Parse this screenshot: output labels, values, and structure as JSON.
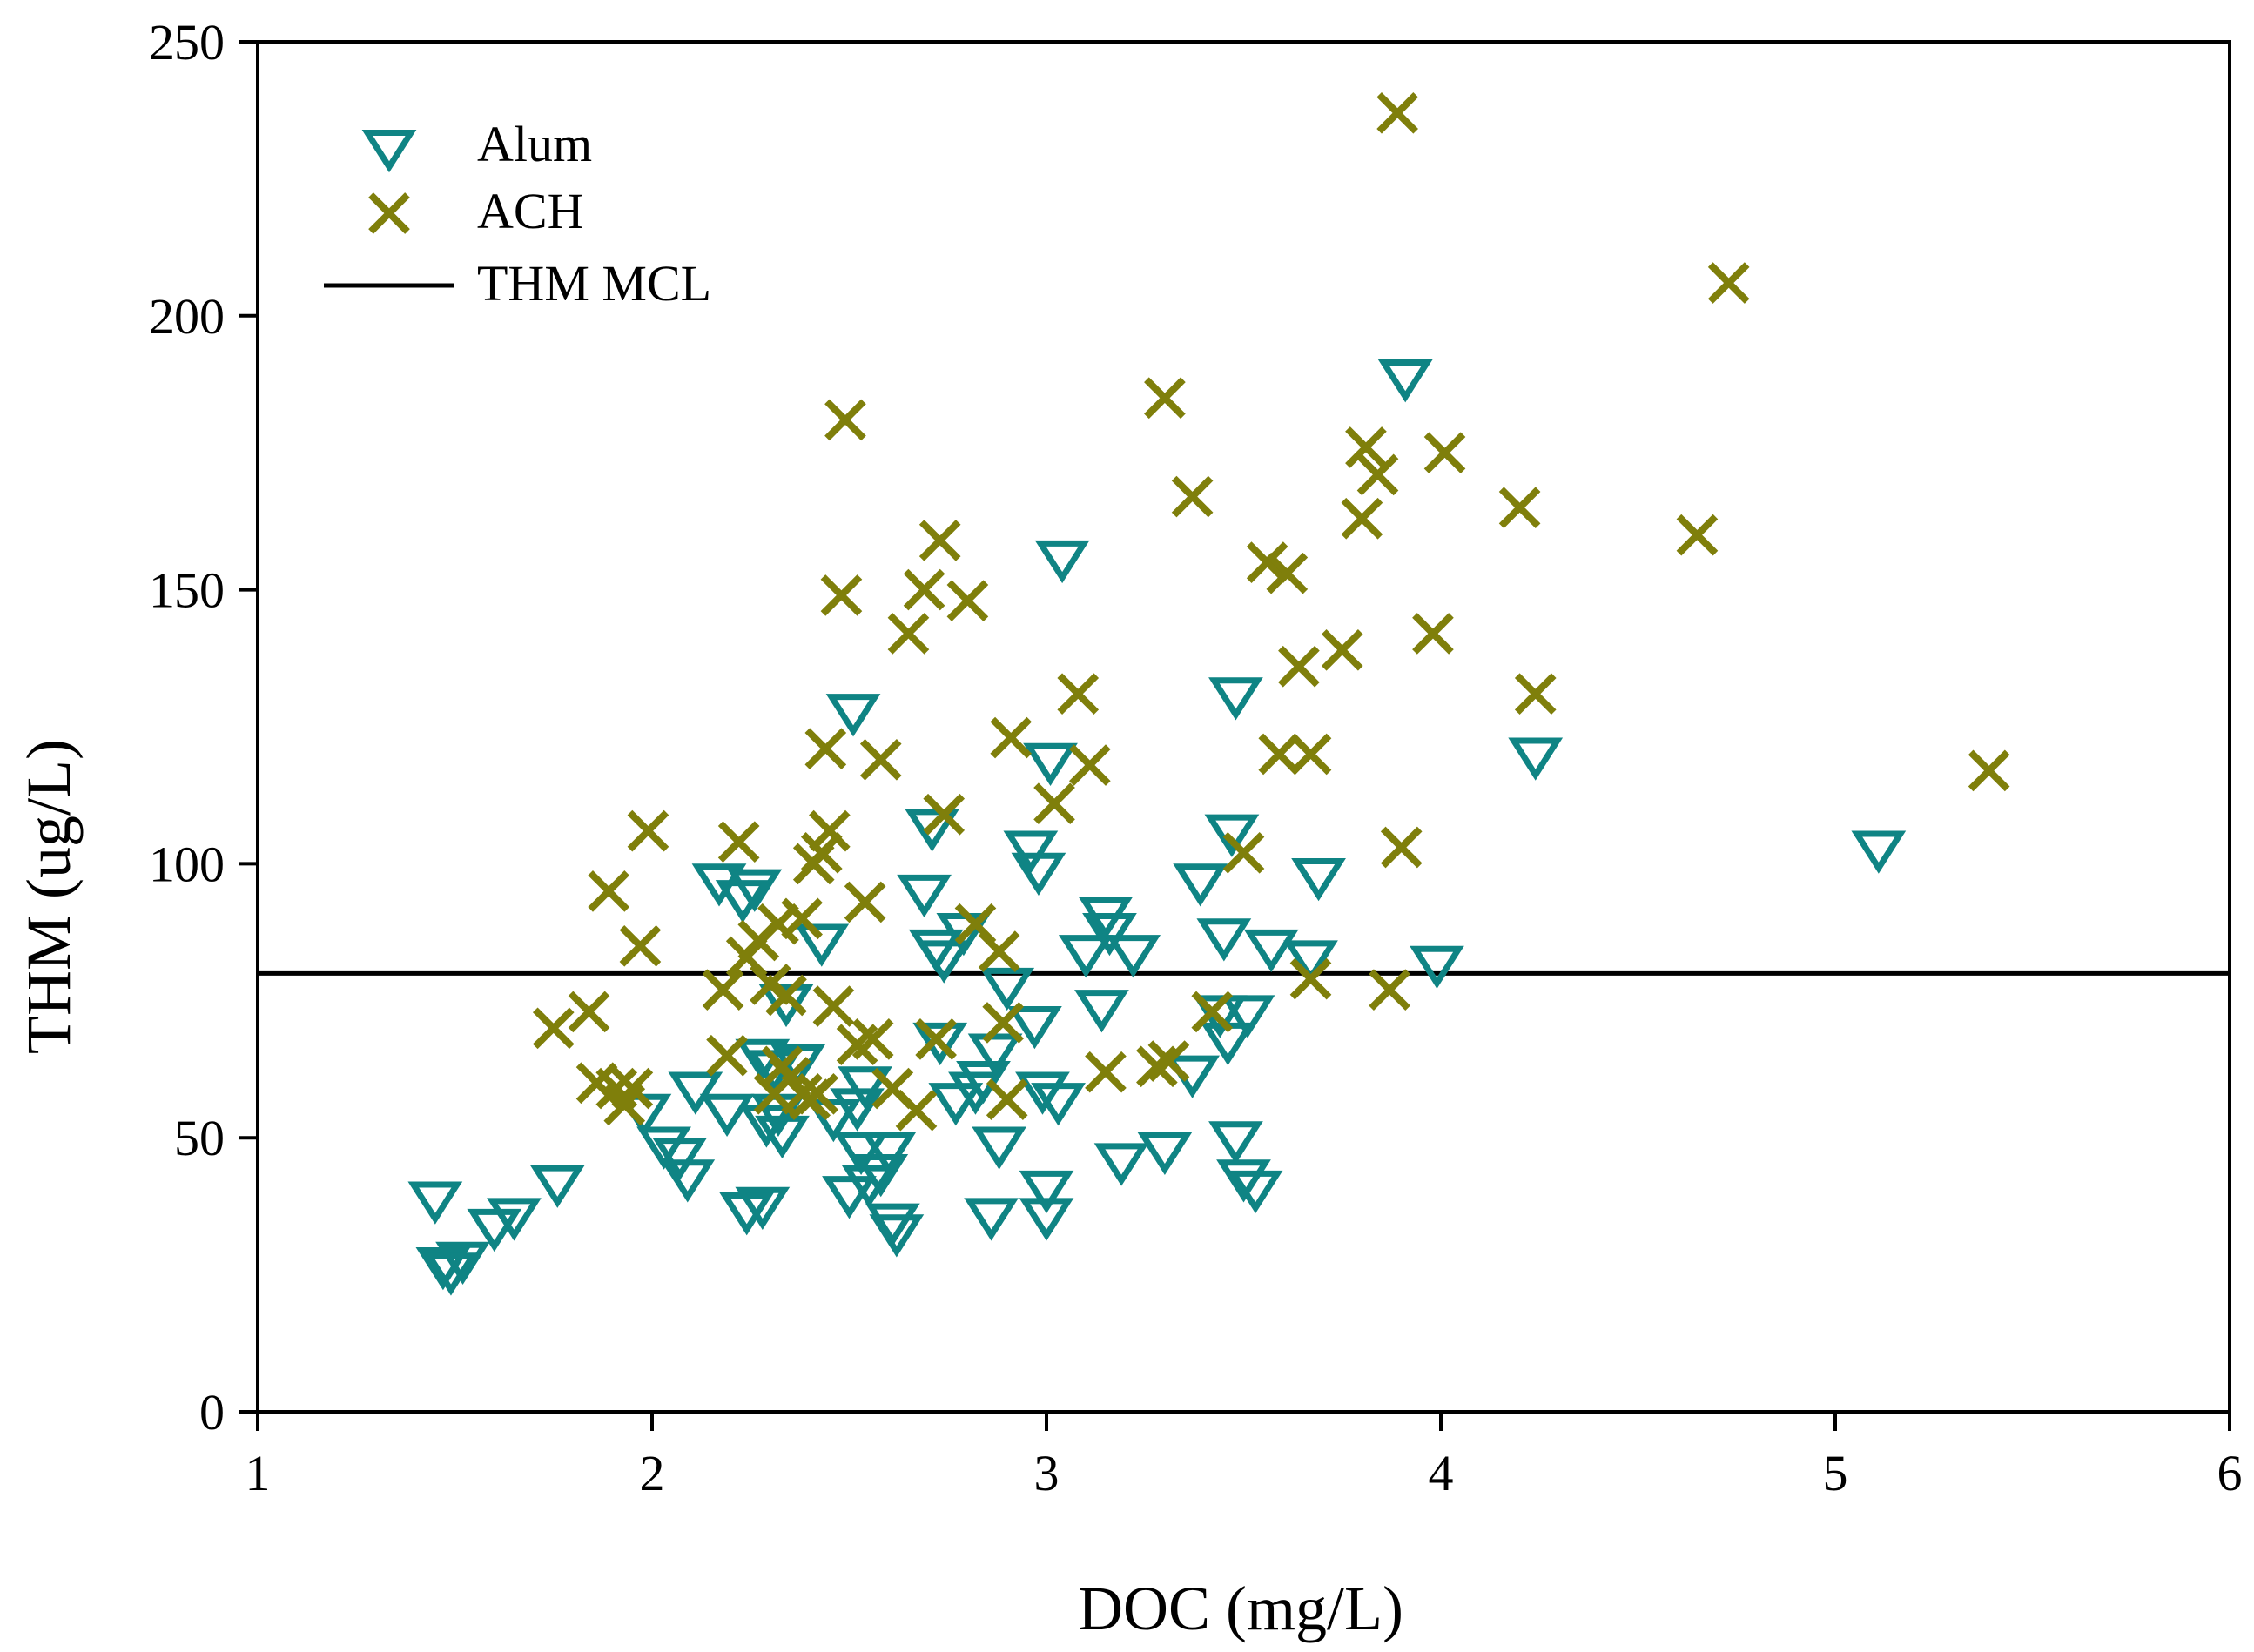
{
  "chart_data": {
    "type": "scatter",
    "title": "",
    "xlabel": "DOC (mg/L)",
    "ylabel": "THM (ug/L)",
    "xlim": [
      1,
      6
    ],
    "ylim": [
      0,
      250
    ],
    "xticks": [
      1,
      2,
      3,
      4,
      5,
      6
    ],
    "yticks": [
      0,
      50,
      100,
      150,
      200,
      250
    ],
    "grid": false,
    "legend_position": "top-left",
    "reference_line": {
      "name": "THM MCL",
      "y": 80,
      "color": "#000000"
    },
    "series": [
      {
        "name": "Alum",
        "marker": "triangle-down-open",
        "color": "#0f8484",
        "points": [
          [
            1.45,
            39
          ],
          [
            1.47,
            27
          ],
          [
            1.49,
            26
          ],
          [
            1.52,
            28
          ],
          [
            1.6,
            34
          ],
          [
            1.65,
            36
          ],
          [
            1.76,
            42
          ],
          [
            1.98,
            55
          ],
          [
            2.03,
            49
          ],
          [
            2.07,
            47
          ],
          [
            2.09,
            43
          ],
          [
            2.11,
            59
          ],
          [
            2.17,
            97
          ],
          [
            2.19,
            55
          ],
          [
            2.23,
            94
          ],
          [
            2.24,
            37
          ],
          [
            2.26,
            96
          ],
          [
            2.28,
            38
          ],
          [
            2.28,
            65
          ],
          [
            2.29,
            53
          ],
          [
            2.31,
            63
          ],
          [
            2.32,
            55
          ],
          [
            2.33,
            51
          ],
          [
            2.34,
            75
          ],
          [
            2.37,
            64
          ],
          [
            2.43,
            86
          ],
          [
            2.46,
            54
          ],
          [
            2.5,
            40
          ],
          [
            2.51,
            128
          ],
          [
            2.52,
            56
          ],
          [
            2.53,
            48
          ],
          [
            2.54,
            60
          ],
          [
            2.55,
            42
          ],
          [
            2.58,
            44
          ],
          [
            2.6,
            48
          ],
          [
            2.61,
            35
          ],
          [
            2.62,
            33
          ],
          [
            2.69,
            95
          ],
          [
            2.71,
            107
          ],
          [
            2.72,
            85
          ],
          [
            2.73,
            68
          ],
          [
            2.74,
            83
          ],
          [
            2.77,
            57
          ],
          [
            2.79,
            88
          ],
          [
            2.82,
            59
          ],
          [
            2.84,
            61
          ],
          [
            2.86,
            36
          ],
          [
            2.87,
            66
          ],
          [
            2.88,
            49
          ],
          [
            2.9,
            78
          ],
          [
            2.96,
            103
          ],
          [
            2.97,
            71
          ],
          [
            2.98,
            99
          ],
          [
            2.99,
            59
          ],
          [
            3.0,
            36
          ],
          [
            3.0,
            41
          ],
          [
            3.01,
            119
          ],
          [
            3.03,
            57
          ],
          [
            3.04,
            156
          ],
          [
            3.1,
            84
          ],
          [
            3.14,
            74
          ],
          [
            3.15,
            91
          ],
          [
            3.16,
            88
          ],
          [
            3.19,
            46
          ],
          [
            3.22,
            84
          ],
          [
            3.3,
            48
          ],
          [
            3.37,
            62
          ],
          [
            3.39,
            97
          ],
          [
            3.44,
            73
          ],
          [
            3.45,
            87
          ],
          [
            3.46,
            68
          ],
          [
            3.47,
            106
          ],
          [
            3.48,
            50
          ],
          [
            3.48,
            131
          ],
          [
            3.5,
            43
          ],
          [
            3.51,
            73
          ],
          [
            3.53,
            41
          ],
          [
            3.57,
            85
          ],
          [
            3.67,
            83
          ],
          [
            3.69,
            98
          ],
          [
            3.91,
            189
          ],
          [
            3.99,
            82
          ],
          [
            4.24,
            120
          ],
          [
            5.11,
            103
          ]
        ]
      },
      {
        "name": "ACH",
        "marker": "x",
        "color": "#7f7f0b",
        "points": [
          [
            1.75,
            70
          ],
          [
            1.84,
            73
          ],
          [
            1.86,
            60
          ],
          [
            1.89,
            95
          ],
          [
            1.91,
            59
          ],
          [
            1.93,
            56
          ],
          [
            1.95,
            59
          ],
          [
            1.97,
            85
          ],
          [
            1.99,
            106
          ],
          [
            2.18,
            77
          ],
          [
            2.19,
            65
          ],
          [
            2.22,
            104
          ],
          [
            2.24,
            83
          ],
          [
            2.27,
            86
          ],
          [
            2.3,
            78
          ],
          [
            2.31,
            58
          ],
          [
            2.32,
            89
          ],
          [
            2.33,
            63
          ],
          [
            2.34,
            76
          ],
          [
            2.35,
            61
          ],
          [
            2.38,
            90
          ],
          [
            2.38,
            58
          ],
          [
            2.4,
            57
          ],
          [
            2.41,
            100
          ],
          [
            2.42,
            58
          ],
          [
            2.43,
            102
          ],
          [
            2.44,
            121
          ],
          [
            2.45,
            106
          ],
          [
            2.46,
            74
          ],
          [
            2.48,
            149
          ],
          [
            2.49,
            181
          ],
          [
            2.52,
            67
          ],
          [
            2.54,
            93
          ],
          [
            2.56,
            68
          ],
          [
            2.58,
            119
          ],
          [
            2.61,
            59
          ],
          [
            2.65,
            142
          ],
          [
            2.67,
            55
          ],
          [
            2.69,
            150
          ],
          [
            2.72,
            68
          ],
          [
            2.73,
            159
          ],
          [
            2.74,
            109
          ],
          [
            2.8,
            148
          ],
          [
            2.82,
            89
          ],
          [
            2.88,
            84
          ],
          [
            2.89,
            71
          ],
          [
            2.9,
            57
          ],
          [
            2.91,
            123
          ],
          [
            3.02,
            111
          ],
          [
            3.08,
            131
          ],
          [
            3.11,
            118
          ],
          [
            3.15,
            62
          ],
          [
            3.28,
            63
          ],
          [
            3.3,
            185
          ],
          [
            3.31,
            64
          ],
          [
            3.37,
            167
          ],
          [
            3.42,
            73
          ],
          [
            3.5,
            102
          ],
          [
            3.56,
            155
          ],
          [
            3.59,
            120
          ],
          [
            3.61,
            153
          ],
          [
            3.64,
            136
          ],
          [
            3.67,
            120
          ],
          [
            3.67,
            79
          ],
          [
            3.75,
            139
          ],
          [
            3.8,
            163
          ],
          [
            3.81,
            176
          ],
          [
            3.84,
            171
          ],
          [
            3.87,
            77
          ],
          [
            3.89,
            237
          ],
          [
            3.9,
            103
          ],
          [
            3.98,
            142
          ],
          [
            4.01,
            175
          ],
          [
            4.2,
            165
          ],
          [
            4.24,
            131
          ],
          [
            4.65,
            160
          ],
          [
            4.73,
            206
          ],
          [
            5.39,
            117
          ]
        ]
      }
    ]
  }
}
